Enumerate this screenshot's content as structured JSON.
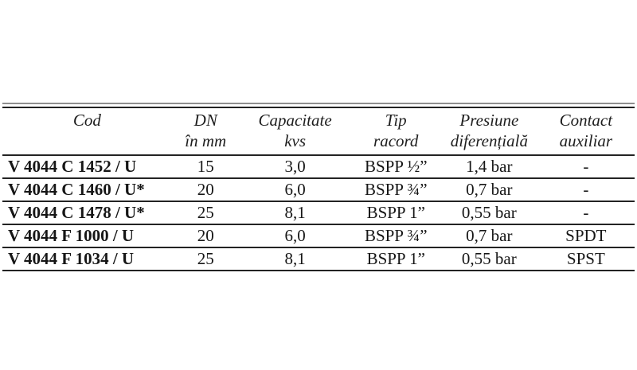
{
  "page": {
    "background_color": "#ffffff",
    "text_color": "#1e1e1e",
    "rule_dark_color": "#232323",
    "rule_light_color": "#8f8f8f"
  },
  "table": {
    "columns": [
      {
        "id": "cod",
        "label_line1": "Cod",
        "label_line2": ""
      },
      {
        "id": "dn",
        "label_line1": "DN",
        "label_line2": "în mm"
      },
      {
        "id": "capacitate",
        "label_line1": "Capacitate",
        "label_line2": "kvs"
      },
      {
        "id": "tip",
        "label_line1": "Tip",
        "label_line2": "racord"
      },
      {
        "id": "presiune",
        "label_line1": "Presiune",
        "label_line2": "diferențială"
      },
      {
        "id": "contact",
        "label_line1": "Contact",
        "label_line2": "auxiliar"
      }
    ],
    "rows": [
      [
        "V 4044 C 1452 / U",
        "15",
        "3,0",
        "BSPP ½”",
        "1,4 bar",
        "-"
      ],
      [
        "V 4044 C 1460 / U*",
        "20",
        "6,0",
        "BSPP ¾”",
        "0,7 bar",
        "-"
      ],
      [
        "V 4044 C 1478 / U*",
        "25",
        "8,1",
        "BSPP 1”",
        "0,55 bar",
        "-"
      ],
      [
        "V 4044 F 1000 / U",
        "20",
        "6,0",
        "BSPP ¾”",
        "0,7 bar",
        "SPDT"
      ],
      [
        "V 4044 F 1034 / U",
        "25",
        "8,1",
        "BSPP 1”",
        "0,55 bar",
        "SPST"
      ]
    ]
  }
}
